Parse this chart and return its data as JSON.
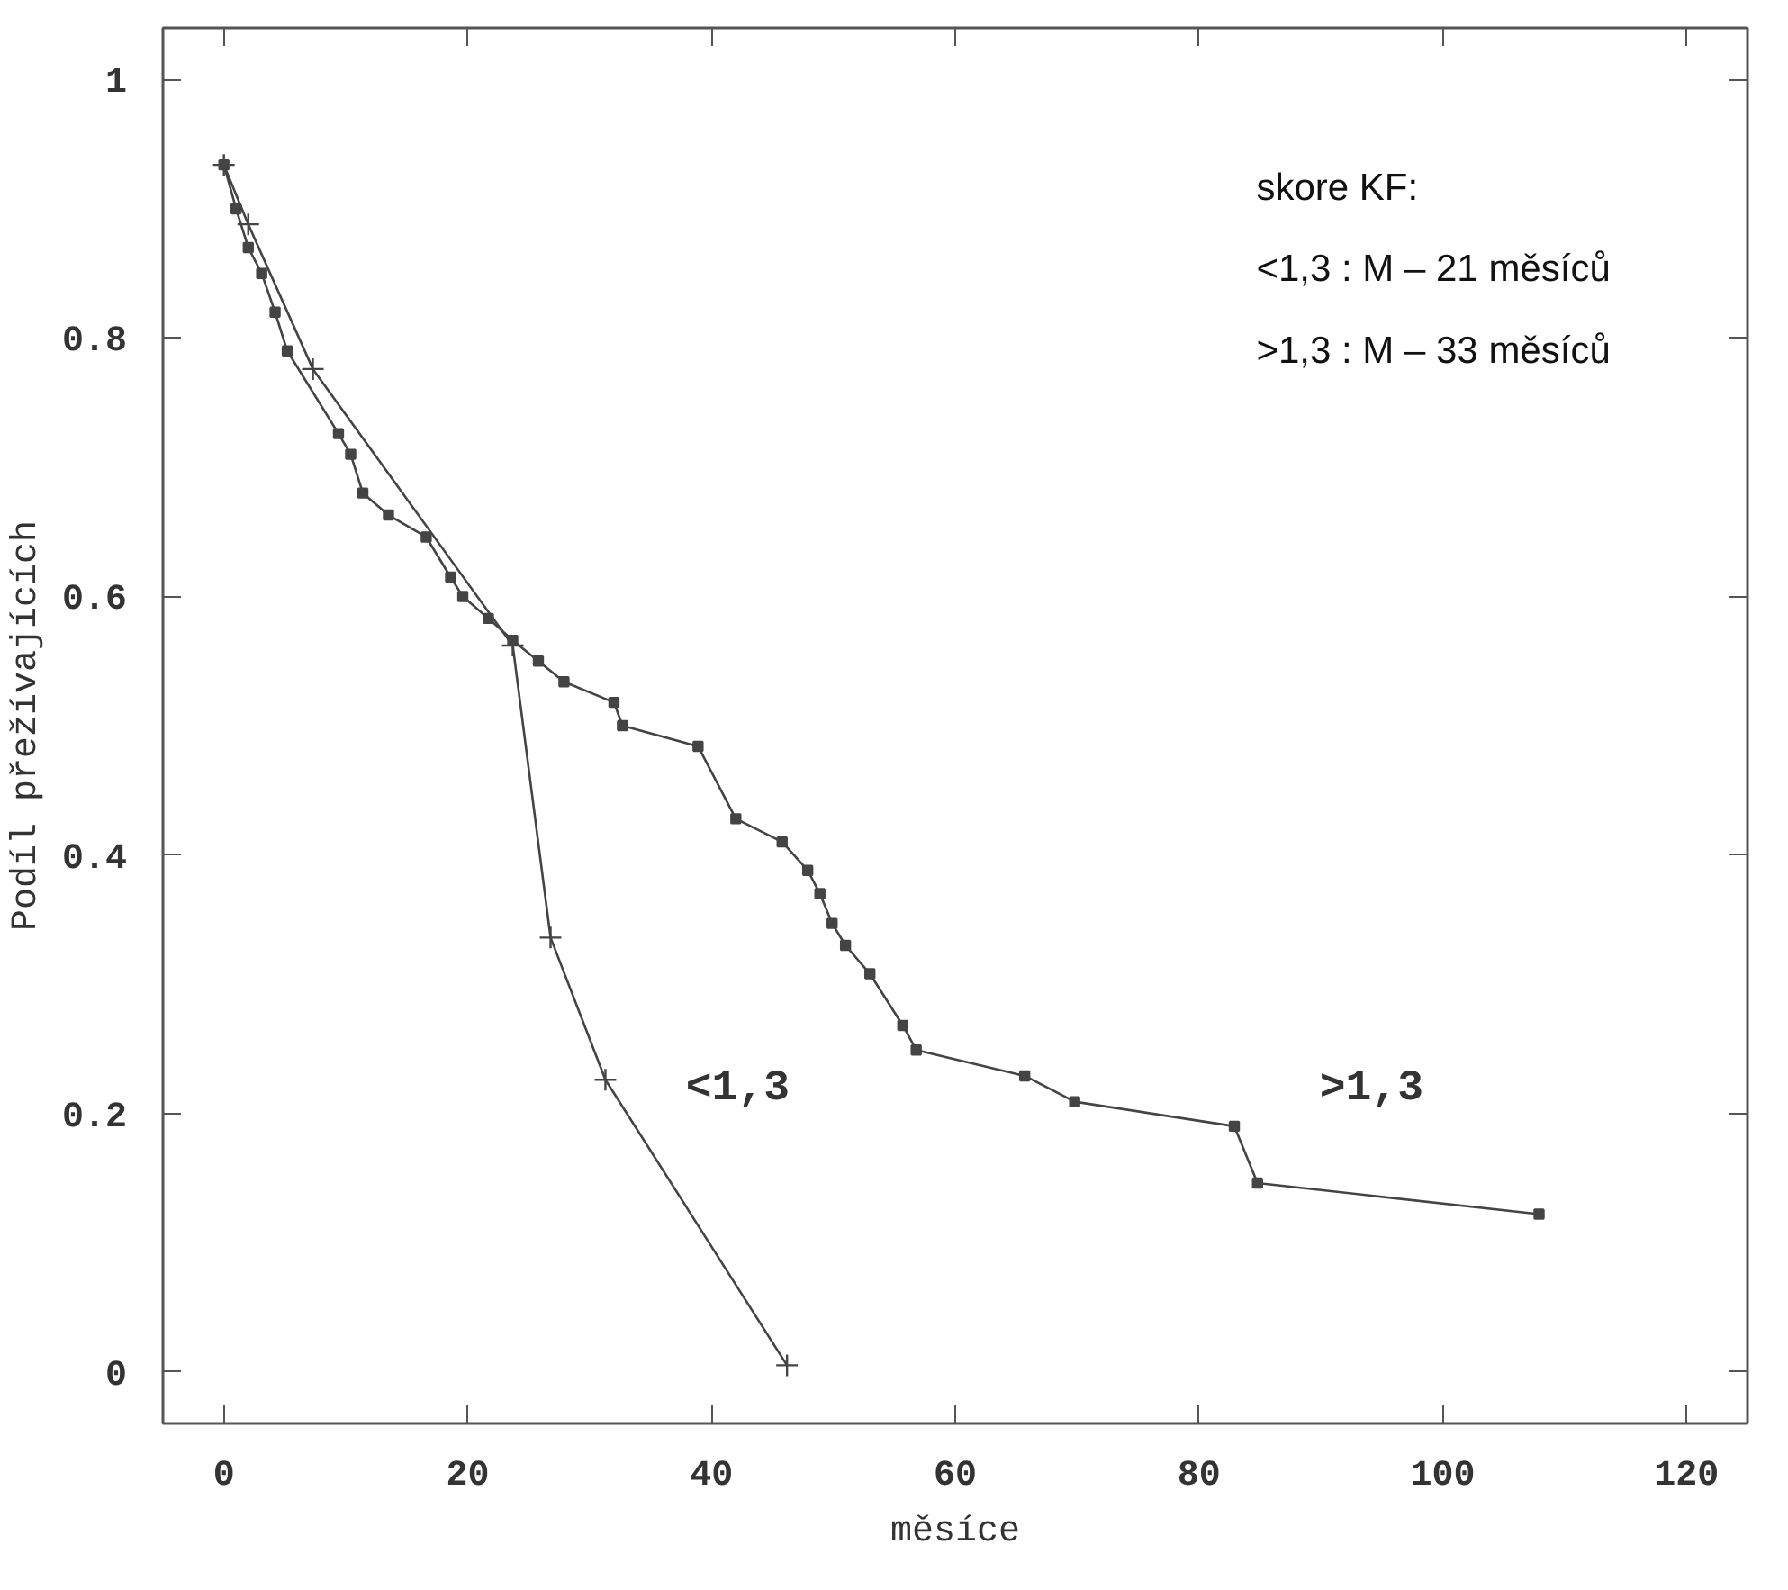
{
  "chart_data": {
    "type": "line",
    "xlabel": "měsíce",
    "ylabel": "Podíl přežívajících",
    "xlim": [
      -5,
      125
    ],
    "ylim": [
      -0.04,
      1.04
    ],
    "xticks": [
      0,
      20,
      40,
      60,
      80,
      100,
      120
    ],
    "yticks": [
      0,
      0.2,
      0.4,
      0.6,
      0.8,
      1
    ],
    "series": [
      {
        "name": "<1,3",
        "color": "#444444",
        "marker": "cross",
        "x": [
          0,
          2.0,
          7.3,
          23.7,
          26.8,
          31.3,
          46.2
        ],
        "values": [
          0.934,
          0.888,
          0.776,
          0.562,
          0.336,
          0.226,
          0.005
        ]
      },
      {
        "name": ">1,3",
        "color": "#444444",
        "marker": "square",
        "x": [
          0,
          1.0,
          2.0,
          3.1,
          4.2,
          5.2,
          9.4,
          10.4,
          11.4,
          13.5,
          16.6,
          18.6,
          19.6,
          21.7,
          23.7,
          25.8,
          27.9,
          32.0,
          32.7,
          38.9,
          42.0,
          45.8,
          47.9,
          48.9,
          49.9,
          51.0,
          53.0,
          55.7,
          56.8,
          65.7,
          69.8,
          82.9,
          84.8,
          107.9
        ],
        "values": [
          0.934,
          0.9,
          0.87,
          0.85,
          0.82,
          0.79,
          0.726,
          0.71,
          0.68,
          0.663,
          0.646,
          0.615,
          0.6,
          0.583,
          0.566,
          0.55,
          0.534,
          0.518,
          0.5,
          0.484,
          0.428,
          0.41,
          0.388,
          0.37,
          0.347,
          0.33,
          0.308,
          0.268,
          0.249,
          0.229,
          0.209,
          0.19,
          0.146,
          0.122
        ]
      }
    ],
    "annotations": [
      "skore KF:",
      "<1,3 : M – 21 měsíců",
      ">1,3 : M – 33 měsíců"
    ]
  }
}
